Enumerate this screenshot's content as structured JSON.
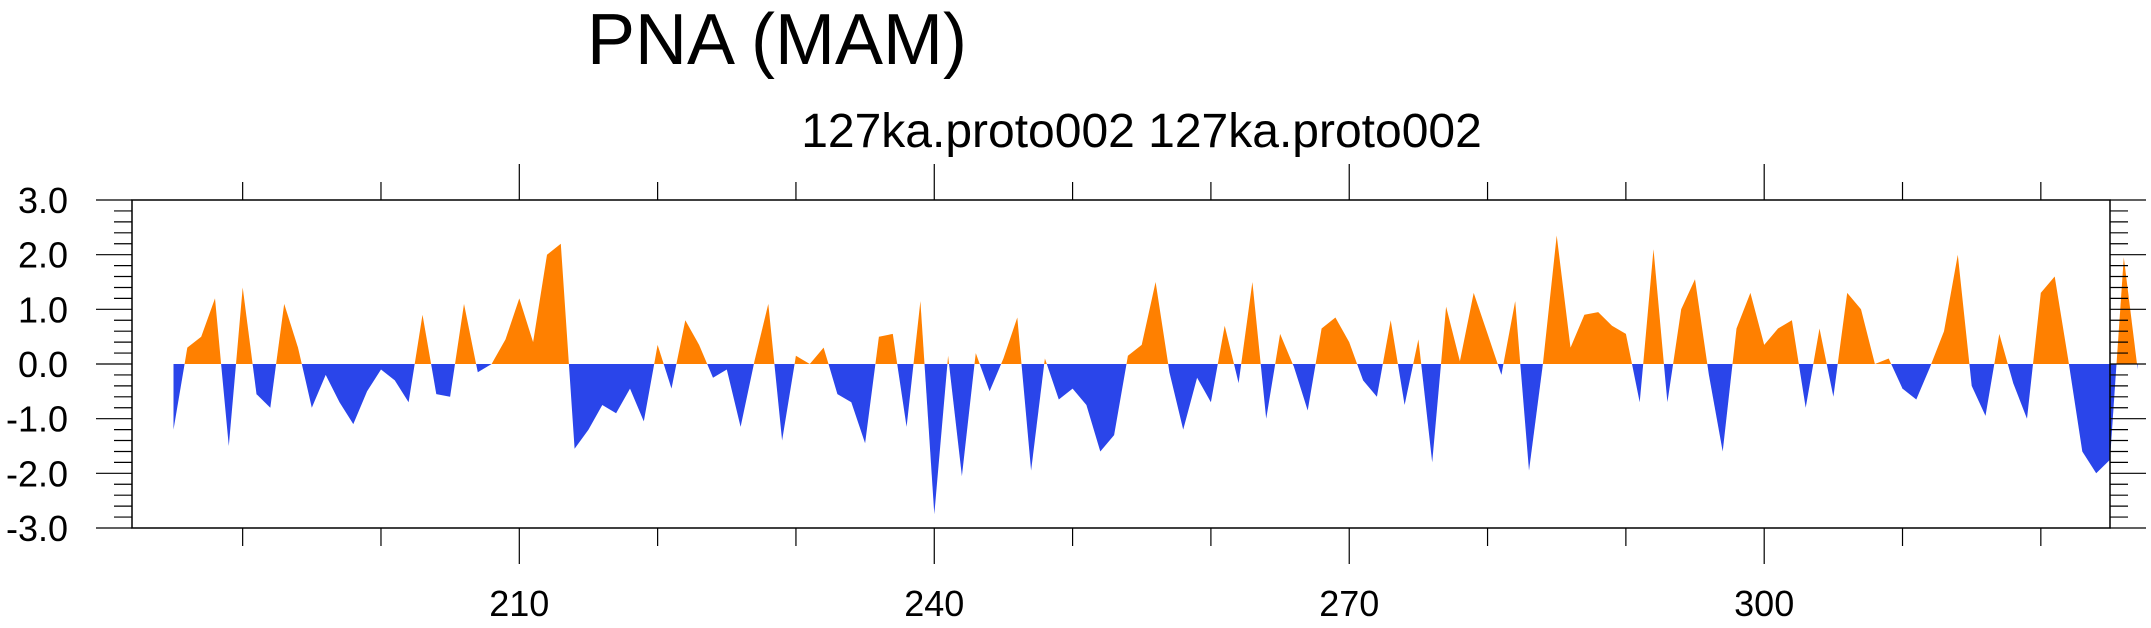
{
  "chart_data": {
    "type": "area",
    "title": "PNA (MAM)",
    "subtitle": "127ka.proto002  127ka.proto002",
    "x_start": 185,
    "x_step": 1,
    "xlim": [
      182,
      325
    ],
    "ylim": [
      -3.0,
      3.0
    ],
    "xticks": [
      210,
      240,
      270,
      300
    ],
    "xtick_labels": [
      "210",
      "240",
      "270",
      "300"
    ],
    "yticks": [
      -3.0,
      -2.0,
      -1.0,
      0.0,
      1.0,
      2.0,
      3.0
    ],
    "ytick_labels": [
      "-3.0",
      "-2.0",
      "-1.0",
      "0.0",
      "1.0",
      "2.0",
      "3.0"
    ],
    "grid": false,
    "colors": {
      "positive": "#ff8000",
      "negative": "#2a45ea",
      "axis": "#000000"
    },
    "values": [
      -1.2,
      0.3,
      0.5,
      1.2,
      -1.5,
      1.4,
      -0.55,
      -0.8,
      1.1,
      0.3,
      -0.8,
      -0.2,
      -0.7,
      -1.1,
      -0.5,
      -0.1,
      -0.3,
      -0.7,
      0.9,
      -0.55,
      -0.6,
      1.1,
      -0.15,
      0.0,
      0.45,
      1.2,
      0.4,
      2.0,
      2.2,
      -1.55,
      -1.2,
      -0.75,
      -0.9,
      -0.45,
      -1.05,
      0.35,
      -0.45,
      0.8,
      0.35,
      -0.25,
      -0.1,
      -1.15,
      0.05,
      1.1,
      -1.4,
      0.15,
      0.0,
      0.3,
      -0.55,
      -0.7,
      -1.45,
      0.5,
      0.55,
      -1.15,
      1.15,
      -2.75,
      0.15,
      -2.05,
      0.2,
      -0.5,
      0.1,
      0.85,
      -1.95,
      0.1,
      -0.65,
      -0.45,
      -0.75,
      -1.6,
      -1.3,
      0.15,
      0.35,
      1.5,
      -0.15,
      -1.2,
      -0.25,
      -0.7,
      0.7,
      -0.35,
      1.5,
      -1.0,
      0.55,
      -0.05,
      -0.85,
      0.65,
      0.85,
      0.4,
      -0.3,
      -0.6,
      0.8,
      -0.75,
      0.45,
      -1.8,
      1.05,
      0.05,
      1.3,
      0.55,
      -0.2,
      1.15,
      -1.95,
      0.0,
      2.35,
      0.3,
      0.9,
      0.95,
      0.7,
      0.55,
      -0.7,
      2.1,
      -0.7,
      1.0,
      1.55,
      -0.2,
      -1.6,
      0.65,
      1.3,
      0.35,
      0.65,
      0.8,
      -0.8,
      0.65,
      -0.6,
      1.3,
      1.0,
      0.0,
      0.1,
      -0.45,
      -0.65,
      -0.05,
      0.6,
      2.0,
      -0.4,
      -0.95,
      0.55,
      -0.35,
      -1.0,
      1.3,
      1.6,
      0.05,
      -1.6,
      -2.0,
      -1.75,
      1.95,
      -0.1
    ]
  }
}
